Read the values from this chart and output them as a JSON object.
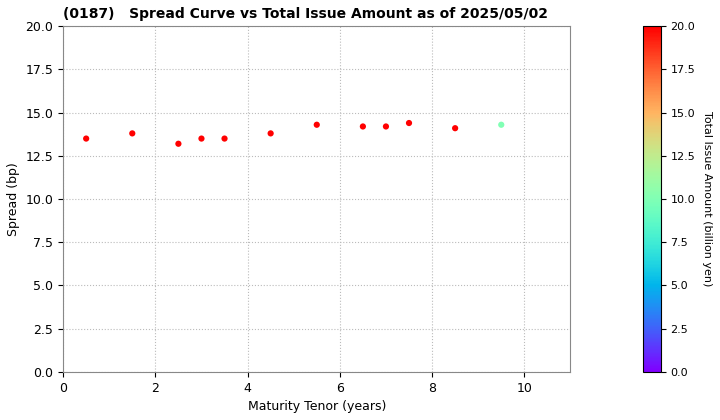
{
  "title": "(0187)   Spread Curve vs Total Issue Amount as of 2025/05/02",
  "xlabel": "Maturity Tenor (years)",
  "ylabel": "Spread (bp)",
  "colorbar_label": "Total Issue Amount (billion yen)",
  "xlim": [
    0,
    11
  ],
  "ylim": [
    0,
    20
  ],
  "xticks": [
    0,
    2,
    4,
    6,
    8,
    10
  ],
  "yticks": [
    0.0,
    2.5,
    5.0,
    7.5,
    10.0,
    12.5,
    15.0,
    17.5,
    20.0
  ],
  "colorbar_min": 0.0,
  "colorbar_max": 20.0,
  "scatter_x": [
    0.5,
    1.5,
    2.5,
    3.0,
    3.5,
    4.5,
    5.5,
    6.5,
    7.0,
    7.5,
    8.5,
    9.5
  ],
  "scatter_y": [
    13.5,
    13.8,
    13.2,
    13.5,
    13.5,
    13.8,
    14.3,
    14.2,
    14.2,
    14.4,
    14.1,
    14.3
  ],
  "scatter_c": [
    20.0,
    20.0,
    20.0,
    20.0,
    20.0,
    20.0,
    20.0,
    20.0,
    20.0,
    20.0,
    20.0,
    10.0
  ],
  "marker_size": 20,
  "grid_color": "#bbbbbb",
  "grid_style": "dotted",
  "background_color": "#ffffff",
  "title_fontsize": 10,
  "label_fontsize": 9,
  "tick_fontsize": 9,
  "cbar_tick_fontsize": 8,
  "cbar_label_fontsize": 8
}
